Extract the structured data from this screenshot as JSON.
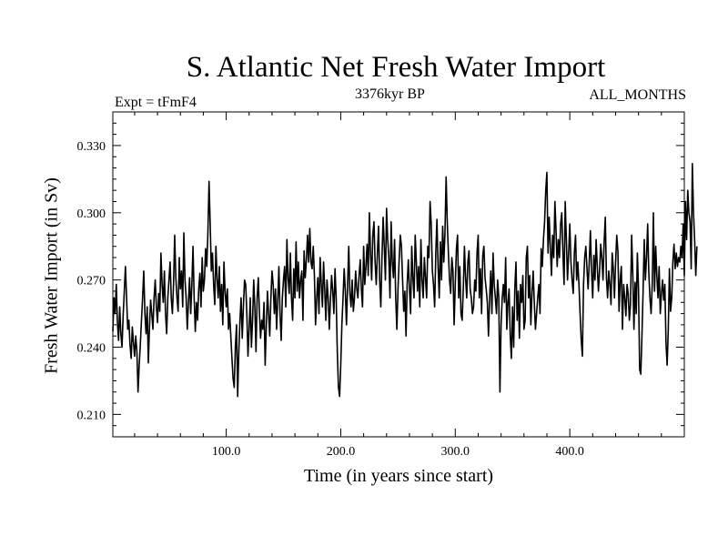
{
  "chart_data": {
    "type": "line",
    "title": "S. Atlantic Net Fresh Water Import",
    "subtitle": "3376kyr BP",
    "expt_label": "Expt = tFmF4",
    "period_label": "ALL_MONTHS",
    "xlabel": "Time (in years since start)",
    "ylabel": "Fresh Water Import (in Sv)",
    "xlim": [
      1,
      500
    ],
    "ylim": [
      0.2,
      0.345
    ],
    "x_ticks": [
      100,
      200,
      300,
      400
    ],
    "x_tick_labels": [
      "100.0",
      "200.0",
      "300.0",
      "400.0"
    ],
    "y_ticks": [
      0.21,
      0.24,
      0.27,
      0.3,
      0.33
    ],
    "y_tick_labels": [
      "0.210",
      "0.240",
      "0.270",
      "0.300",
      "0.330"
    ],
    "series": [
      {
        "name": "Net Fresh Water Import",
        "x_start": 1,
        "x_step": 1,
        "values": [
          0.247,
          0.262,
          0.255,
          0.268,
          0.251,
          0.243,
          0.258,
          0.246,
          0.24,
          0.254,
          0.265,
          0.276,
          0.262,
          0.248,
          0.252,
          0.241,
          0.235,
          0.249,
          0.242,
          0.236,
          0.245,
          0.238,
          0.22,
          0.232,
          0.241,
          0.252,
          0.262,
          0.274,
          0.255,
          0.246,
          0.258,
          0.233,
          0.249,
          0.261,
          0.255,
          0.248,
          0.262,
          0.27,
          0.258,
          0.251,
          0.264,
          0.256,
          0.282,
          0.268,
          0.26,
          0.274,
          0.255,
          0.246,
          0.262,
          0.27,
          0.278,
          0.262,
          0.255,
          0.268,
          0.29,
          0.271,
          0.262,
          0.256,
          0.28,
          0.266,
          0.274,
          0.258,
          0.291,
          0.27,
          0.262,
          0.248,
          0.26,
          0.271,
          0.255,
          0.268,
          0.285,
          0.262,
          0.247,
          0.26,
          0.252,
          0.266,
          0.273,
          0.258,
          0.28,
          0.265,
          0.27,
          0.284,
          0.276,
          0.291,
          0.314,
          0.295,
          0.274,
          0.282,
          0.268,
          0.259,
          0.285,
          0.271,
          0.262,
          0.276,
          0.256,
          0.268,
          0.25,
          0.278,
          0.265,
          0.258,
          0.266,
          0.248,
          0.255,
          0.245,
          0.235,
          0.226,
          0.222,
          0.24,
          0.25,
          0.218,
          0.238,
          0.252,
          0.262,
          0.244,
          0.258,
          0.27,
          0.268,
          0.255,
          0.236,
          0.248,
          0.262,
          0.24,
          0.252,
          0.27,
          0.258,
          0.238,
          0.262,
          0.271,
          0.255,
          0.244,
          0.252,
          0.248,
          0.26,
          0.232,
          0.249,
          0.265,
          0.255,
          0.245,
          0.262,
          0.274,
          0.268,
          0.255,
          0.266,
          0.248,
          0.261,
          0.276,
          0.255,
          0.243,
          0.262,
          0.27,
          0.276,
          0.258,
          0.288,
          0.271,
          0.264,
          0.282,
          0.262,
          0.252,
          0.275,
          0.262,
          0.287,
          0.265,
          0.278,
          0.262,
          0.27,
          0.274,
          0.252,
          0.283,
          0.271,
          0.279,
          0.29,
          0.278,
          0.293,
          0.278,
          0.275,
          0.285,
          0.272,
          0.25,
          0.262,
          0.271,
          0.255,
          0.28,
          0.268,
          0.258,
          0.278,
          0.266,
          0.252,
          0.27,
          0.262,
          0.248,
          0.261,
          0.272,
          0.265,
          0.255,
          0.275,
          0.262,
          0.238,
          0.222,
          0.218,
          0.232,
          0.25,
          0.262,
          0.275,
          0.265,
          0.25,
          0.268,
          0.285,
          0.264,
          0.258,
          0.27,
          0.256,
          0.262,
          0.274,
          0.266,
          0.262,
          0.272,
          0.279,
          0.266,
          0.258,
          0.285,
          0.268,
          0.276,
          0.286,
          0.272,
          0.3,
          0.282,
          0.27,
          0.29,
          0.296,
          0.278,
          0.268,
          0.282,
          0.294,
          0.27,
          0.258,
          0.28,
          0.298,
          0.285,
          0.27,
          0.302,
          0.288,
          0.28,
          0.262,
          0.296,
          0.278,
          0.271,
          0.288,
          0.262,
          0.248,
          0.266,
          0.279,
          0.29,
          0.285,
          0.27,
          0.256,
          0.265,
          0.245,
          0.268,
          0.279,
          0.266,
          0.255,
          0.285,
          0.271,
          0.262,
          0.29,
          0.278,
          0.265,
          0.276,
          0.258,
          0.288,
          0.27,
          0.262,
          0.28,
          0.271,
          0.262,
          0.285,
          0.28,
          0.305,
          0.295,
          0.274,
          0.268,
          0.258,
          0.282,
          0.297,
          0.276,
          0.262,
          0.287,
          0.27,
          0.294,
          0.278,
          0.291,
          0.316,
          0.296,
          0.282,
          0.27,
          0.264,
          0.28,
          0.274,
          0.25,
          0.268,
          0.284,
          0.29,
          0.262,
          0.276,
          0.255,
          0.252,
          0.266,
          0.285,
          0.271,
          0.262,
          0.278,
          0.283,
          0.266,
          0.262,
          0.255,
          0.258,
          0.27,
          0.265,
          0.282,
          0.29,
          0.262,
          0.275,
          0.255,
          0.281,
          0.285,
          0.271,
          0.266,
          0.26,
          0.245,
          0.262,
          0.274,
          0.255,
          0.282,
          0.268,
          0.262,
          0.255,
          0.27,
          0.262,
          0.22,
          0.25,
          0.262,
          0.268,
          0.26,
          0.28,
          0.248,
          0.26,
          0.266,
          0.245,
          0.235,
          0.258,
          0.24,
          0.266,
          0.278,
          0.252,
          0.265,
          0.244,
          0.268,
          0.26,
          0.272,
          0.248,
          0.252,
          0.28,
          0.285,
          0.262,
          0.272,
          0.25,
          0.264,
          0.274,
          0.26,
          0.248,
          0.255,
          0.262,
          0.268,
          0.255,
          0.284,
          0.276,
          0.288,
          0.296,
          0.31,
          0.318,
          0.282,
          0.298,
          0.285,
          0.272,
          0.29,
          0.28,
          0.305,
          0.292,
          0.276,
          0.288,
          0.28,
          0.295,
          0.3,
          0.282,
          0.268,
          0.305,
          0.288,
          0.27,
          0.282,
          0.295,
          0.278,
          0.27,
          0.264,
          0.282,
          0.29,
          0.27,
          0.278,
          0.268,
          0.255,
          0.243,
          0.236,
          0.268,
          0.28,
          0.285,
          0.275,
          0.266,
          0.278,
          0.292,
          0.274,
          0.262,
          0.281,
          0.27,
          0.288,
          0.276,
          0.265,
          0.274,
          0.286,
          0.28,
          0.27,
          0.287,
          0.298,
          0.271,
          0.262,
          0.274,
          0.268,
          0.259,
          0.282,
          0.275,
          0.262,
          0.278,
          0.29,
          0.283,
          0.256,
          0.27,
          0.276,
          0.248,
          0.268,
          0.262,
          0.254,
          0.268,
          0.264,
          0.252,
          0.259,
          0.29,
          0.273,
          0.248,
          0.269,
          0.255,
          0.282,
          0.266,
          0.23,
          0.228,
          0.245,
          0.265,
          0.288,
          0.27,
          0.28,
          0.295,
          0.273,
          0.262,
          0.255,
          0.268,
          0.3,
          0.265,
          0.285,
          0.272,
          0.262,
          0.276,
          0.255,
          0.264,
          0.27,
          0.261,
          0.268,
          0.242,
          0.232,
          0.248,
          0.275,
          0.256,
          0.262,
          0.278,
          0.286,
          0.275,
          0.282,
          0.276,
          0.28,
          0.278,
          0.285,
          0.28,
          0.295,
          0.272,
          0.305,
          0.288,
          0.31,
          0.3,
          0.296,
          0.275,
          0.322,
          0.3,
          0.288,
          0.272,
          0.285
        ]
      }
    ]
  }
}
